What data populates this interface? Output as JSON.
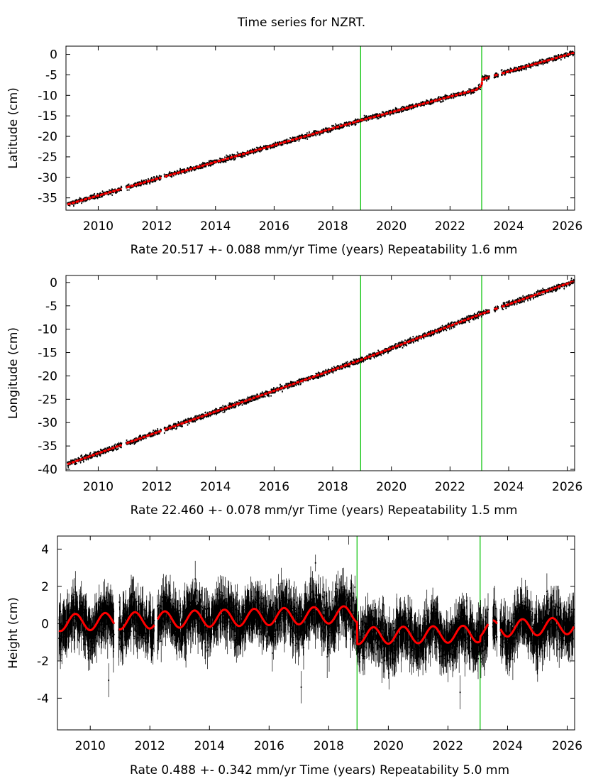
{
  "page": {
    "title": "Time series for NZRT."
  },
  "colors": {
    "data": "#000000",
    "model": "#ff0000",
    "event_line": "#00c000",
    "frame": "#000000"
  },
  "chart_data": [
    {
      "type": "scatter",
      "name": "latitude",
      "ylabel": "Latitude (cm)",
      "xlabel": "Time (years)",
      "rate_text": "Rate 20.517 +- 0.088 mm/yr",
      "repeat_text": "Repeatability 1.6 mm",
      "xlim": [
        2008.9,
        2026.25
      ],
      "ylim": [
        -38,
        2
      ],
      "xticks": [
        2010,
        2012,
        2014,
        2016,
        2018,
        2020,
        2022,
        2024,
        2026
      ],
      "yticks": [
        0,
        -5,
        -10,
        -15,
        -20,
        -25,
        -30,
        -35
      ],
      "events": [
        2018.95,
        2023.08
      ],
      "gaps": [
        [
          2010.8,
          2010.95
        ],
        [
          2012.15,
          2012.25
        ],
        [
          2023.35,
          2023.5
        ],
        [
          2023.65,
          2023.75
        ]
      ],
      "series": [
        {
          "name": "model",
          "x": [
            2008.95,
            2018.95,
            2022.9,
            2023.08,
            2023.1,
            2026.2
          ],
          "y": [
            -36.6,
            -16.1,
            -8.6,
            -7.6,
            -6.0,
            0.3
          ]
        }
      ],
      "spread": 0.3,
      "error": 0.2
    },
    {
      "type": "scatter",
      "name": "longitude",
      "ylabel": "Longitude (cm)",
      "xlabel": "Time (years)",
      "rate_text": "Rate 22.460 +- 0.078 mm/yr",
      "repeat_text": "Repeatability 1.5 mm",
      "xlim": [
        2008.9,
        2026.25
      ],
      "ylim": [
        -40.3,
        1.5
      ],
      "xticks": [
        2010,
        2012,
        2014,
        2016,
        2018,
        2020,
        2022,
        2024,
        2026
      ],
      "yticks": [
        0,
        -5,
        -10,
        -15,
        -20,
        -25,
        -30,
        -35,
        -40
      ],
      "events": [
        2018.95,
        2023.08
      ],
      "gaps": [
        [
          2010.8,
          2010.95
        ],
        [
          2012.15,
          2012.25
        ],
        [
          2023.35,
          2023.5
        ],
        [
          2023.65,
          2023.75
        ]
      ],
      "series": [
        {
          "name": "model",
          "x": [
            2008.95,
            2018.95,
            2023.08,
            2026.2
          ],
          "y": [
            -38.9,
            -16.6,
            -6.7,
            0.2
          ]
        }
      ],
      "spread": 0.3,
      "error": 0.2
    },
    {
      "type": "scatter",
      "name": "height",
      "ylabel": "Height (cm)",
      "xlabel": "Time (years)",
      "rate_text": "Rate 0.488 +- 0.342 mm/yr",
      "repeat_text": "Repeatability 5.0 mm",
      "xlim": [
        2008.9,
        2026.25
      ],
      "ylim": [
        -5.7,
        4.7
      ],
      "xticks": [
        2010,
        2012,
        2014,
        2016,
        2018,
        2020,
        2022,
        2024,
        2026
      ],
      "yticks": [
        4,
        2,
        0,
        -2,
        -4
      ],
      "events": [
        2018.95,
        2023.08
      ],
      "gaps": [
        [
          2010.8,
          2010.95
        ],
        [
          2012.15,
          2012.25
        ],
        [
          2023.35,
          2023.5
        ],
        [
          2023.65,
          2023.75
        ]
      ],
      "seasonal": {
        "period": 1.0,
        "amplitude": 0.45,
        "phase": 0.25,
        "offsets": [
          {
            "from": 2008.9,
            "to": 2018.95,
            "start": 0.05,
            "end": 0.5
          },
          {
            "from": 2018.95,
            "to": 2023.08,
            "start": -0.65,
            "end": -0.55
          },
          {
            "from": 2023.08,
            "to": 2026.25,
            "start": -0.3,
            "end": -0.1
          }
        ]
      },
      "spread": 0.6,
      "error": 0.8
    }
  ]
}
